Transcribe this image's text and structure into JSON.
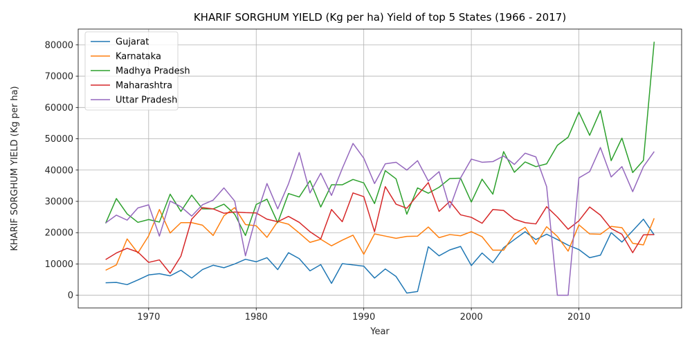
{
  "chart_data": {
    "type": "line",
    "title": "KHARIF SORGHUM YIELD (Kg per ha) Yield of top 5 States (1966 - 2017)",
    "xlabel": "Year",
    "ylabel": "KHARIF SORGHUM YIELD (Kg per ha)",
    "xlim": [
      1963.45,
      2019.55
    ],
    "ylim": [
      -4050,
      85050
    ],
    "xticks": [
      1970,
      1980,
      1990,
      2000,
      2010
    ],
    "yticks": [
      0,
      10000,
      20000,
      30000,
      40000,
      50000,
      60000,
      70000,
      80000
    ],
    "grid": true,
    "legend_position": "top-left",
    "x": [
      1966,
      1967,
      1968,
      1969,
      1970,
      1971,
      1972,
      1973,
      1974,
      1975,
      1976,
      1977,
      1978,
      1979,
      1980,
      1981,
      1982,
      1983,
      1984,
      1985,
      1986,
      1987,
      1988,
      1989,
      1990,
      1991,
      1992,
      1993,
      1994,
      1995,
      1996,
      1997,
      1998,
      1999,
      2000,
      2001,
      2002,
      2003,
      2004,
      2005,
      2006,
      2007,
      2008,
      2009,
      2010,
      2011,
      2012,
      2013,
      2014,
      2015,
      2016,
      2017
    ],
    "series": [
      {
        "name": "Gujarat",
        "color": "#1f77b4",
        "values": [
          4000,
          4100,
          3400,
          4900,
          6500,
          6900,
          6200,
          8000,
          5500,
          8200,
          9600,
          8800,
          10000,
          11500,
          10700,
          12000,
          8200,
          13600,
          11700,
          7800,
          9800,
          3800,
          10100,
          9700,
          9300,
          5500,
          8400,
          6000,
          700,
          1200,
          15500,
          12600,
          14500,
          15600,
          9500,
          13500,
          10400,
          15200,
          17800,
          20300,
          17800,
          19500,
          17800,
          16000,
          14600,
          12000,
          12800,
          20000,
          17000,
          20600,
          24300,
          19300
        ]
      },
      {
        "name": "Karnataka",
        "color": "#ff7f0e",
        "values": [
          8000,
          9700,
          18000,
          13500,
          19000,
          27400,
          19900,
          23200,
          23200,
          22400,
          19100,
          25400,
          28000,
          22600,
          22200,
          18500,
          23600,
          22700,
          19900,
          16900,
          17900,
          15800,
          17600,
          19200,
          13100,
          19600,
          18900,
          18200,
          18800,
          18900,
          21800,
          18400,
          19400,
          19000,
          20300,
          18700,
          14400,
          14400,
          19500,
          21700,
          16300,
          21900,
          18800,
          14100,
          22500,
          19600,
          19500,
          22000,
          21600,
          16600,
          16100,
          24600
        ]
      },
      {
        "name": "Madhya Pradesh",
        "color": "#2ca02c",
        "values": [
          23000,
          30900,
          26000,
          23300,
          24200,
          23400,
          32300,
          26800,
          32000,
          27600,
          27600,
          29100,
          25900,
          19100,
          29000,
          30700,
          23200,
          32500,
          31400,
          36600,
          28200,
          35300,
          35300,
          37000,
          35900,
          29300,
          39800,
          37200,
          25900,
          34300,
          32600,
          34500,
          37300,
          37400,
          29800,
          37100,
          32300,
          45900,
          39300,
          42600,
          41100,
          42000,
          47900,
          50500,
          58500,
          51100,
          59000,
          43000,
          50200,
          39200,
          43100,
          81000
        ]
      },
      {
        "name": "Maharashtra",
        "color": "#d62728",
        "values": [
          11400,
          13500,
          15000,
          13800,
          10500,
          11300,
          7000,
          12500,
          24300,
          28000,
          27600,
          26200,
          26600,
          26400,
          26300,
          24300,
          23500,
          25200,
          23300,
          20300,
          18000,
          27400,
          23500,
          32700,
          31500,
          20300,
          34700,
          29100,
          27800,
          32000,
          36000,
          26800,
          30000,
          25700,
          24900,
          23000,
          27400,
          27100,
          24300,
          23200,
          22800,
          28300,
          25000,
          21100,
          23800,
          28200,
          25600,
          21300,
          19500,
          13600,
          19300,
          19400
        ]
      },
      {
        "name": "Uttar Pradesh",
        "color": "#9467bd",
        "values": [
          23100,
          25600,
          24000,
          27900,
          28900,
          18900,
          30100,
          28300,
          25300,
          28900,
          30400,
          34300,
          30100,
          12600,
          25300,
          35700,
          27600,
          35600,
          45600,
          32700,
          39000,
          31900,
          40500,
          48500,
          43800,
          35700,
          42000,
          42500,
          40000,
          43000,
          36500,
          39500,
          27900,
          37500,
          43500,
          42500,
          42700,
          44500,
          41800,
          45400,
          44200,
          34700,
          0,
          0,
          37500,
          39500,
          47200,
          37800,
          41100,
          33100,
          41100,
          45900
        ]
      }
    ]
  }
}
